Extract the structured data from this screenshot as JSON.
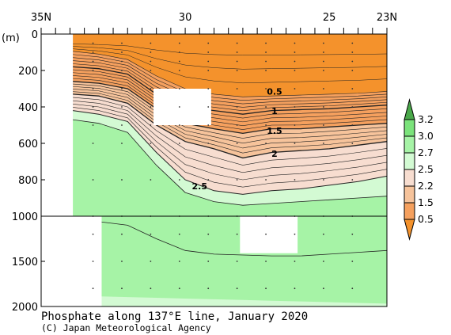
{
  "chart_data": {
    "type": "contour",
    "title": "Phosphate along 137°E line, January 2020",
    "credit": "(C) Japan Meteorological Agency",
    "ylabel": "(m)",
    "x_axis": {
      "min_lat": 23,
      "max_lat": 35,
      "tick_labels": [
        {
          "lat": 35,
          "label": "35N"
        },
        {
          "lat": 30,
          "label": "30"
        },
        {
          "lat": 25,
          "label": "25"
        },
        {
          "lat": 23,
          "label": "23N"
        }
      ]
    },
    "y_axis": {
      "upper_range_m": [
        0,
        1000
      ],
      "lower_range_m": [
        1000,
        2000
      ],
      "tick_labels_upper": [
        {
          "depth": 0,
          "label": "0"
        },
        {
          "depth": 200,
          "label": "200"
        },
        {
          "depth": 400,
          "label": "400"
        },
        {
          "depth": 600,
          "label": "600"
        },
        {
          "depth": 800,
          "label": "800"
        },
        {
          "depth": 1000,
          "label": "1000"
        }
      ],
      "tick_labels_lower": [
        {
          "depth": 1500,
          "label": "1500"
        },
        {
          "depth": 2000,
          "label": "2000"
        }
      ]
    },
    "colorbar": {
      "labels": [
        "3.2",
        "3.0",
        "2.7",
        "2.5",
        "2.2",
        "1.5",
        "0.5"
      ],
      "colors": [
        "#4aa84a",
        "#7be37b",
        "#a6f3a6",
        "#d3fad3",
        "#f7ddd0",
        "#f6c39b",
        "#f5a05e",
        "#f4922c"
      ]
    },
    "contour_labels": [
      {
        "value": "0.5",
        "lat": 26.9,
        "depth": 320
      },
      {
        "value": "1",
        "lat": 26.9,
        "depth": 425
      },
      {
        "value": "1.5",
        "lat": 26.9,
        "depth": 535
      },
      {
        "value": "2",
        "lat": 26.9,
        "depth": 660
      },
      {
        "value": "2.5",
        "lat": 29.5,
        "depth": 840
      }
    ],
    "levels": [
      0.5,
      0.75,
      1.0,
      1.25,
      1.5,
      1.75,
      2.0,
      2.25,
      2.5,
      2.7,
      3.0,
      3.2
    ],
    "section_depth_profiles": {
      "lat": [
        33.9,
        33.0,
        32.0,
        31.0,
        30.0,
        29.0,
        28.0,
        27.0,
        26.0,
        25.0,
        24.0,
        23.0
      ],
      "value_0_5_depth_m": [
        95,
        110,
        140,
        230,
        300,
        330,
        345,
        340,
        335,
        330,
        325,
        315
      ],
      "value_1_depth_m": [
        180,
        190,
        220,
        330,
        400,
        420,
        440,
        420,
        415,
        410,
        400,
        390
      ],
      "value_1_5_depth_m": [
        260,
        270,
        300,
        410,
        490,
        520,
        545,
        520,
        520,
        510,
        500,
        490
      ],
      "value_2_depth_m": [
        330,
        340,
        380,
        500,
        590,
        630,
        680,
        650,
        640,
        630,
        610,
        590
      ],
      "value_2_5_depth_m": [
        420,
        440,
        480,
        650,
        800,
        860,
        880,
        860,
        850,
        830,
        810,
        780
      ],
      "value_2_7_depth_m": [
        470,
        490,
        540,
        720,
        870,
        920,
        940,
        930,
        920,
        910,
        900,
        890
      ],
      "value_3_0_depth_m": [
        1040,
        1060,
        1100,
        1250,
        1380,
        1420,
        1430,
        1440,
        1440,
        1420,
        1400,
        1380
      ]
    },
    "white_masked_regions": [
      {
        "lat_range": [
          33.9,
          35
        ],
        "depth_range_m": [
          0,
          1000
        ]
      },
      {
        "lat_range": [
          32.9,
          35
        ],
        "depth_range_m": [
          1000,
          2000
        ]
      },
      {
        "lat_range": [
          29.1,
          31.1
        ],
        "depth_range_m": [
          300,
          500
        ]
      },
      {
        "lat_range": [
          26.1,
          28.1
        ],
        "depth_range_m": [
          1000,
          1410
        ]
      }
    ]
  }
}
